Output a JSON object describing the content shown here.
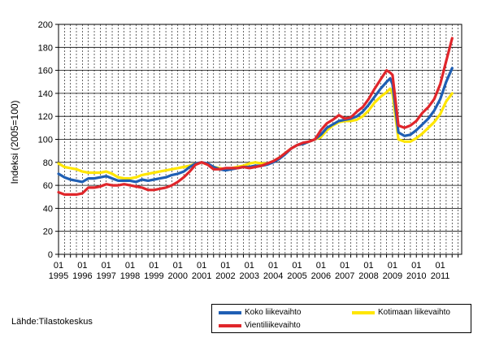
{
  "chart_data": {
    "type": "line",
    "ylabel": "Indeksi (2005=100)",
    "ylim": [
      0,
      200
    ],
    "yticks": [
      0,
      20,
      40,
      60,
      80,
      100,
      120,
      140,
      160,
      180,
      200
    ],
    "xlim": [
      1995.0,
      2011.9
    ],
    "x_tick_years": [
      "1995",
      "1996",
      "1997",
      "1998",
      "1999",
      "2000",
      "2001",
      "2002",
      "2003",
      "2004",
      "2005",
      "2006",
      "2007",
      "2008",
      "2009",
      "2010",
      "2011"
    ],
    "x_tick_month": "01",
    "grid": true,
    "legend_position": "bottom-right",
    "colors": {
      "koko": "#1f5fb4",
      "kotimaan": "#ffe600",
      "vienti": "#e0262b"
    },
    "series": [
      {
        "name": "Koko liikevaihto",
        "key": "koko",
        "x": [
          1995.0,
          1995.25,
          1995.5,
          1995.75,
          1996.0,
          1996.25,
          1996.5,
          1996.75,
          1997.0,
          1997.25,
          1997.5,
          1997.75,
          1998.0,
          1998.25,
          1998.5,
          1998.75,
          1999.0,
          1999.25,
          1999.5,
          1999.75,
          2000.0,
          2000.25,
          2000.5,
          2000.75,
          2001.0,
          2001.25,
          2001.5,
          2001.75,
          2002.0,
          2002.25,
          2002.5,
          2002.75,
          2003.0,
          2003.25,
          2003.5,
          2003.75,
          2004.0,
          2004.25,
          2004.5,
          2004.75,
          2005.0,
          2005.25,
          2005.5,
          2005.75,
          2006.0,
          2006.25,
          2006.5,
          2006.75,
          2007.0,
          2007.25,
          2007.5,
          2007.75,
          2008.0,
          2008.25,
          2008.5,
          2008.75,
          2008.9,
          2009.0,
          2009.25,
          2009.5,
          2009.75,
          2010.0,
          2010.25,
          2010.5,
          2010.75,
          2011.0,
          2011.25,
          2011.5
        ],
        "y": [
          70,
          67,
          65,
          64,
          63,
          66,
          66,
          67,
          68,
          66,
          64,
          64,
          64,
          63,
          65,
          64,
          65,
          66,
          67,
          69,
          70,
          72,
          76,
          79,
          80,
          79,
          76,
          74,
          73,
          74,
          75,
          76,
          76,
          77,
          77,
          78,
          80,
          83,
          87,
          92,
          95,
          96,
          98,
          100,
          104,
          110,
          113,
          116,
          117,
          118,
          120,
          124,
          130,
          137,
          144,
          150,
          153,
          148,
          106,
          103,
          104,
          108,
          113,
          118,
          125,
          135,
          150,
          162
        ]
      },
      {
        "name": "Kotimaan liikevaihto",
        "key": "kotimaan",
        "x": [
          1995.0,
          1995.25,
          1995.5,
          1995.75,
          1996.0,
          1996.25,
          1996.5,
          1996.75,
          1997.0,
          1997.25,
          1997.5,
          1997.75,
          1998.0,
          1998.25,
          1998.5,
          1998.75,
          1999.0,
          1999.25,
          1999.5,
          1999.75,
          2000.0,
          2000.25,
          2000.5,
          2000.75,
          2001.0,
          2001.25,
          2001.5,
          2001.75,
          2002.0,
          2002.25,
          2002.5,
          2002.75,
          2003.0,
          2003.25,
          2003.5,
          2003.75,
          2004.0,
          2004.25,
          2004.5,
          2004.75,
          2005.0,
          2005.25,
          2005.5,
          2005.75,
          2006.0,
          2006.25,
          2006.5,
          2006.75,
          2007.0,
          2007.25,
          2007.5,
          2007.75,
          2008.0,
          2008.25,
          2008.5,
          2008.75,
          2008.9,
          2009.0,
          2009.25,
          2009.5,
          2009.75,
          2010.0,
          2010.25,
          2010.5,
          2010.75,
          2011.0,
          2011.25,
          2011.5
        ],
        "y": [
          79,
          76,
          75,
          74,
          72,
          71,
          71,
          71,
          72,
          70,
          67,
          66,
          66,
          67,
          69,
          70,
          71,
          72,
          73,
          74,
          75,
          76,
          77,
          79,
          80,
          78,
          76,
          75,
          74,
          75,
          76,
          77,
          79,
          80,
          79,
          79,
          81,
          84,
          88,
          92,
          95,
          96,
          98,
          100,
          102,
          108,
          112,
          115,
          116,
          116,
          117,
          120,
          125,
          132,
          137,
          141,
          144,
          140,
          100,
          98,
          98,
          101,
          105,
          110,
          115,
          122,
          133,
          140
        ]
      },
      {
        "name": "Vientiliikevaihto",
        "key": "vienti",
        "x": [
          1995.0,
          1995.25,
          1995.5,
          1995.75,
          1996.0,
          1996.25,
          1996.5,
          1996.75,
          1997.0,
          1997.25,
          1997.5,
          1997.75,
          1998.0,
          1998.25,
          1998.5,
          1998.75,
          1999.0,
          1999.25,
          1999.5,
          1999.75,
          2000.0,
          2000.25,
          2000.5,
          2000.75,
          2001.0,
          2001.25,
          2001.5,
          2001.75,
          2002.0,
          2002.25,
          2002.5,
          2002.75,
          2003.0,
          2003.25,
          2003.5,
          2003.75,
          2004.0,
          2004.25,
          2004.5,
          2004.75,
          2005.0,
          2005.25,
          2005.5,
          2005.75,
          2006.0,
          2006.25,
          2006.5,
          2006.75,
          2007.0,
          2007.25,
          2007.5,
          2007.75,
          2008.0,
          2008.25,
          2008.5,
          2008.75,
          2008.9,
          2009.0,
          2009.25,
          2009.5,
          2009.75,
          2010.0,
          2010.25,
          2010.5,
          2010.75,
          2011.0,
          2011.25,
          2011.5
        ],
        "y": [
          54,
          52,
          52,
          52,
          53,
          58,
          58,
          59,
          61,
          60,
          60,
          61,
          60,
          59,
          58,
          56,
          56,
          57,
          58,
          60,
          63,
          67,
          72,
          78,
          80,
          78,
          74,
          74,
          75,
          75,
          75,
          76,
          75,
          76,
          77,
          79,
          81,
          84,
          88,
          92,
          95,
          97,
          98,
          100,
          108,
          114,
          117,
          121,
          118,
          119,
          124,
          128,
          135,
          144,
          152,
          160,
          158,
          156,
          112,
          110,
          112,
          116,
          123,
          128,
          135,
          148,
          168,
          188
        ]
      }
    ]
  },
  "source": "Lähde:Tilastokeskus"
}
